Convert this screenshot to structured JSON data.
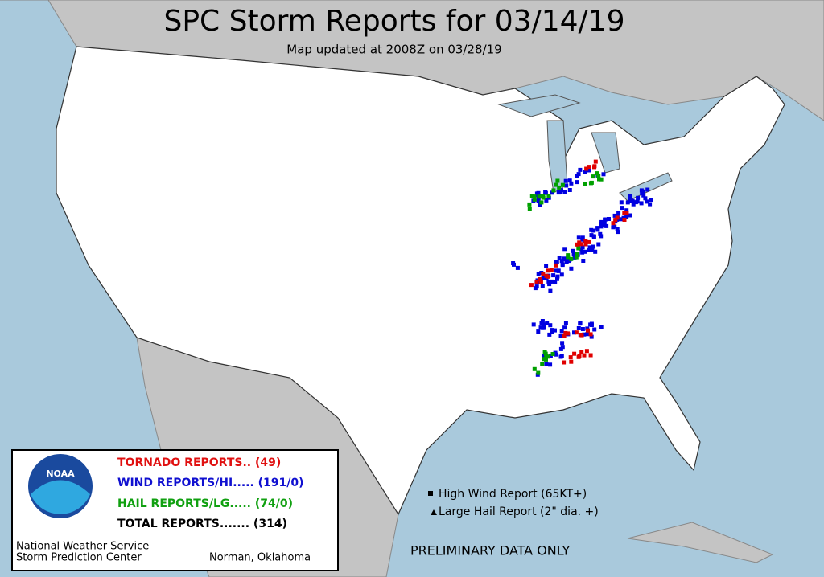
{
  "header": {
    "title": "SPC Storm Reports for 03/14/19",
    "subtitle": "Map updated at 2008Z on 03/28/19"
  },
  "legend": {
    "logo": "NOAA",
    "reports": [
      "TORNADO REPORTS.. (49)",
      "WIND REPORTS/HI..... (191/0)",
      "HAIL REPORTS/LG..... (74/0)",
      "TOTAL REPORTS....... (314)"
    ],
    "agency": [
      "National Weather Service",
      "Storm Prediction Center"
    ],
    "location": "Norman, Oklahoma"
  },
  "key": [
    "High Wind Report (65KT+)",
    "Large Hail Report (2\" dia. +)"
  ],
  "footer": "PRELIMINARY DATA ONLY"
}
